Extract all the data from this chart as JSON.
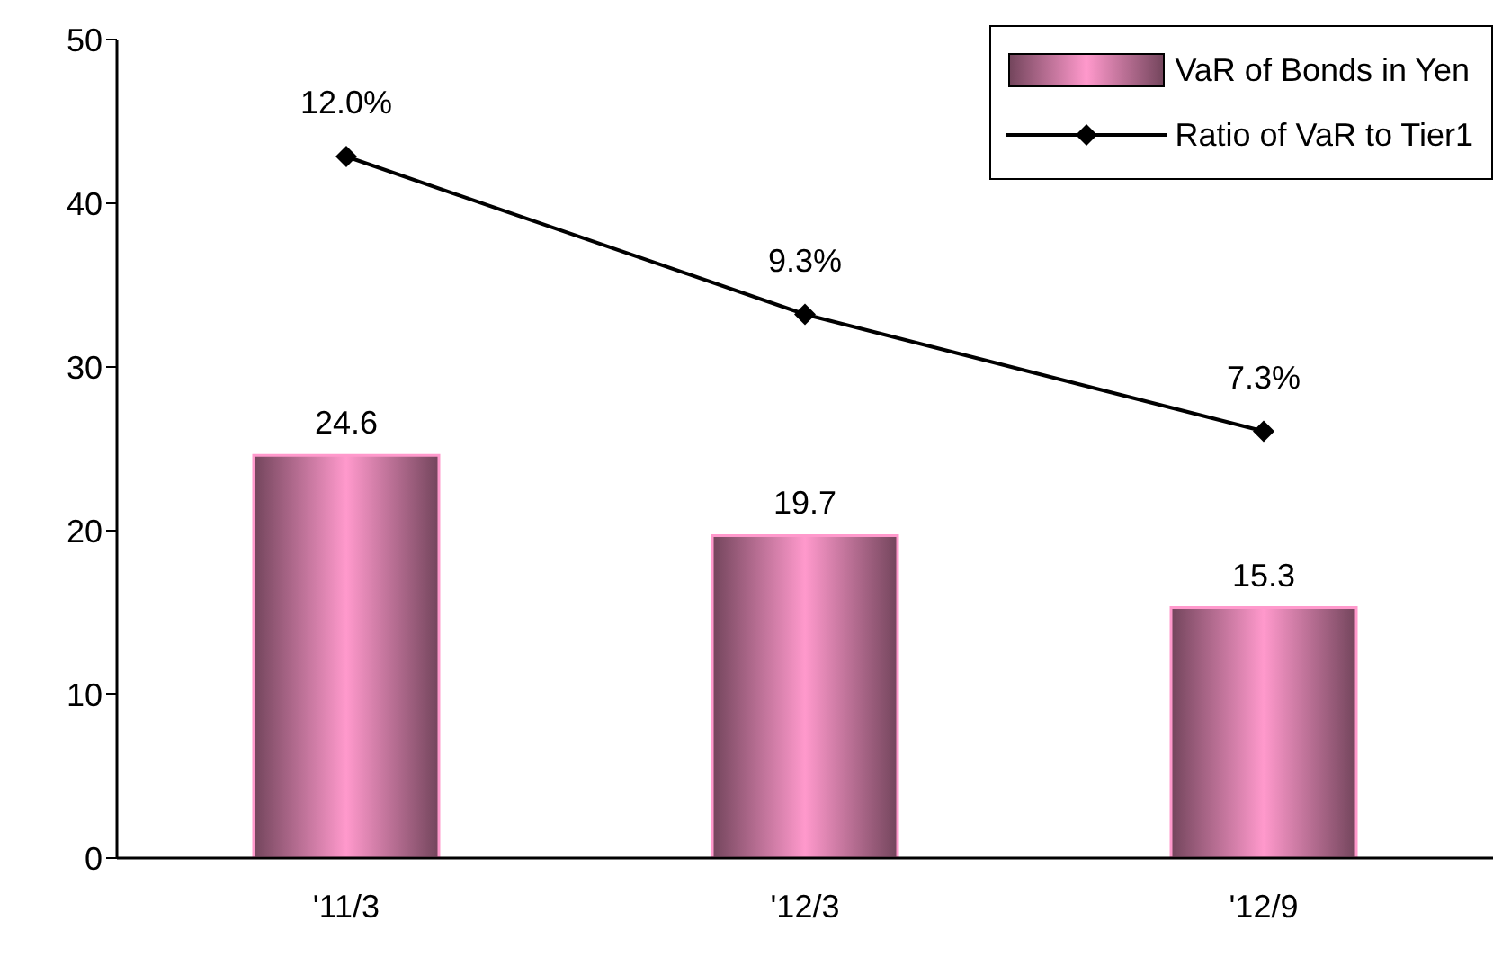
{
  "chart_data": {
    "type": "bar",
    "categories": [
      "'11/3",
      "'12/3",
      "'12/9"
    ],
    "series": [
      {
        "name": "VaR of Bonds in Yen",
        "color": "#ff99cc",
        "values": [
          24.6,
          19.7,
          15.3
        ],
        "value_labels": [
          "24.6",
          "19.7",
          "15.3"
        ]
      },
      {
        "name": "Ratio of VaR to Tier1",
        "type": "line",
        "axis": "y2",
        "color": "#000000",
        "marker": "diamond",
        "values": [
          12.0,
          9.3,
          7.3
        ],
        "value_labels": [
          "12.0%",
          "9.3%",
          "7.3%"
        ]
      }
    ],
    "ylim": [
      0,
      50
    ],
    "yticks": [
      0,
      10,
      20,
      30,
      40,
      50
    ],
    "y2lim": [
      0,
      14
    ],
    "legend": "top right"
  }
}
